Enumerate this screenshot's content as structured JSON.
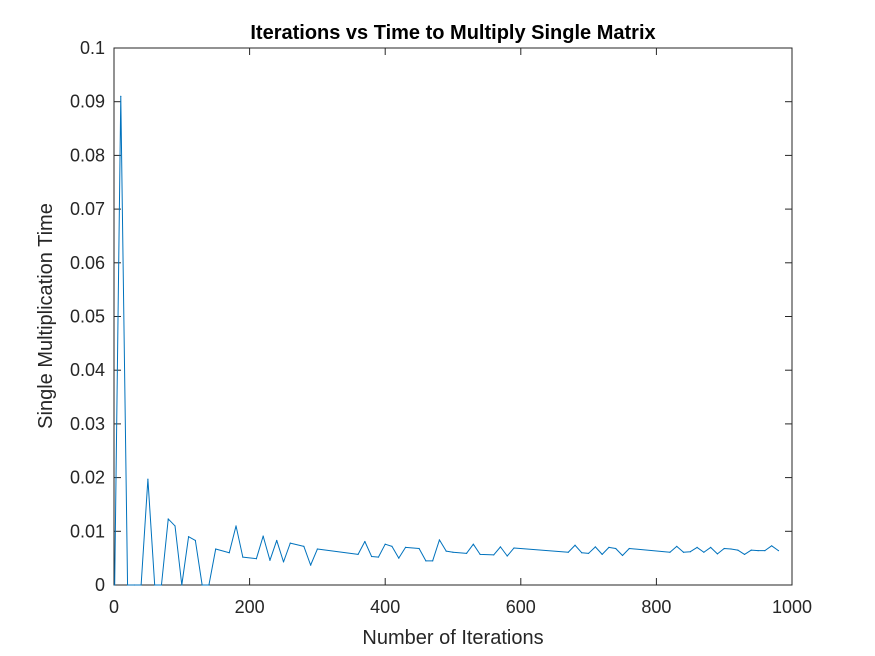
{
  "chart_data": {
    "type": "line",
    "title": "Iterations vs Time to Multiply Single Matrix",
    "xlabel": "Number of Iterations",
    "ylabel": "Single Multiplication Time",
    "xlim": [
      0,
      1000
    ],
    "ylim": [
      0,
      0.1
    ],
    "xticks": [
      "0",
      "200",
      "400",
      "600",
      "800",
      "1000"
    ],
    "yticks": [
      "0",
      "0.01",
      "0.02",
      "0.03",
      "0.04",
      "0.05",
      "0.06",
      "0.07",
      "0.08",
      "0.09",
      "0.1"
    ],
    "grid": false,
    "legend": false,
    "series_color": "#0072BD",
    "x": [
      1,
      10,
      20,
      30,
      40,
      50,
      60,
      70,
      80,
      90,
      100,
      110,
      120,
      130,
      140,
      150,
      170,
      180,
      190,
      210,
      220,
      230,
      240,
      250,
      260,
      280,
      290,
      300,
      360,
      370,
      380,
      390,
      400,
      410,
      420,
      430,
      450,
      460,
      470,
      480,
      490,
      500,
      520,
      530,
      540,
      560,
      570,
      580,
      590,
      670,
      680,
      690,
      700,
      710,
      720,
      730,
      740,
      750,
      760,
      820,
      830,
      840,
      850,
      860,
      870,
      880,
      890,
      900,
      910,
      920,
      930,
      940,
      950,
      960,
      970,
      980
    ],
    "values": [
      0,
      0.091,
      0,
      0,
      0,
      0.0197,
      0,
      0,
      0.0123,
      0.011,
      0,
      0.009,
      0.0083,
      0,
      0,
      0.0067,
      0.006,
      0.011,
      0.0052,
      0.0049,
      0.0091,
      0.0046,
      0.0083,
      0.0043,
      0.0078,
      0.0072,
      0.0037,
      0.0067,
      0.0057,
      0.0081,
      0.0053,
      0.0052,
      0.0076,
      0.0072,
      0.005,
      0.007,
      0.0068,
      0.0045,
      0.0045,
      0.0084,
      0.0063,
      0.0061,
      0.0059,
      0.0076,
      0.0057,
      0.0056,
      0.0071,
      0.0054,
      0.0069,
      0.0061,
      0.0074,
      0.006,
      0.0059,
      0.0071,
      0.0057,
      0.007,
      0.0068,
      0.0055,
      0.0068,
      0.0061,
      0.0072,
      0.0061,
      0.0062,
      0.007,
      0.0061,
      0.007,
      0.0058,
      0.0068,
      0.0067,
      0.0065,
      0.0057,
      0.0065,
      0.0064,
      0.0064,
      0.0073,
      0.0064
    ]
  }
}
